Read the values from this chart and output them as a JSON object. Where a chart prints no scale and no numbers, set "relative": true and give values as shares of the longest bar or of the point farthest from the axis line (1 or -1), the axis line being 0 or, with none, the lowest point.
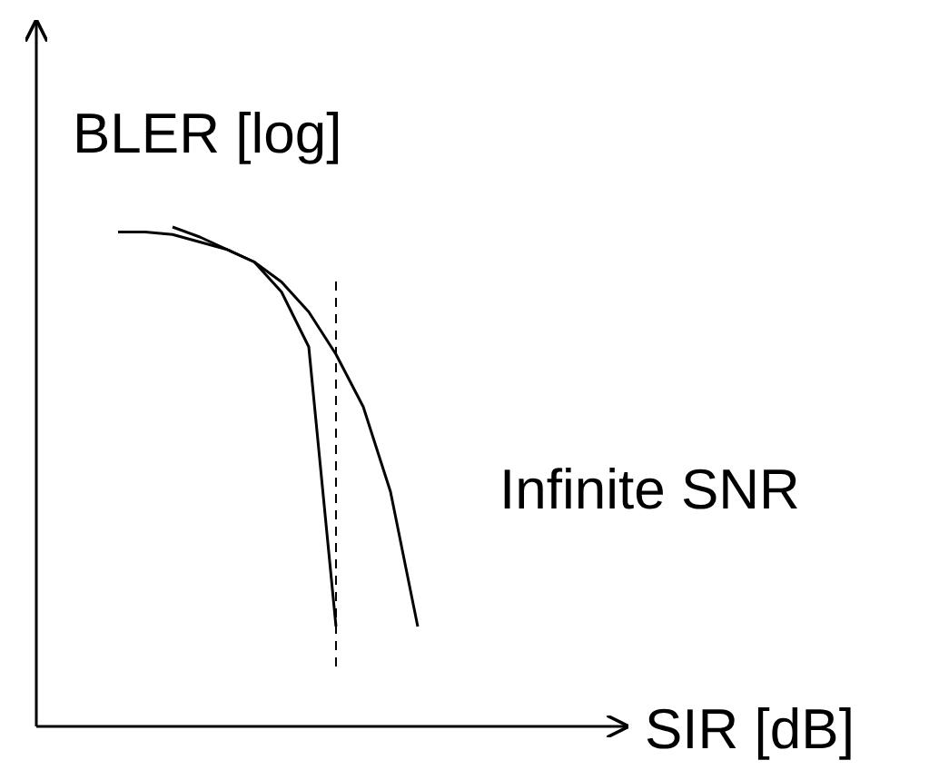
{
  "chart_data": {
    "type": "line",
    "relative": true,
    "xlabel": "SIR [dB]",
    "ylabel": "BLER [log]",
    "categories": [
      null,
      null,
      null,
      null,
      null,
      null,
      null,
      null,
      null,
      null,
      null,
      null
    ],
    "series": [
      {
        "color": "#000000",
        "values": [
          0.99,
          0.99,
          0.985,
          0.97,
          0.955,
          0.93,
          0.87,
          0.76,
          0.2,
          null,
          null,
          null
        ]
      },
      {
        "color": "#000000",
        "values": [
          null,
          null,
          1,
          0.98,
          0.955,
          0.93,
          0.89,
          0.83,
          0.745,
          0.64,
          0.47,
          0.2
        ]
      }
    ],
    "annotations": [
      "Infinite SNR"
    ],
    "grid": false,
    "marker": "none",
    "line_style": "solid"
  }
}
